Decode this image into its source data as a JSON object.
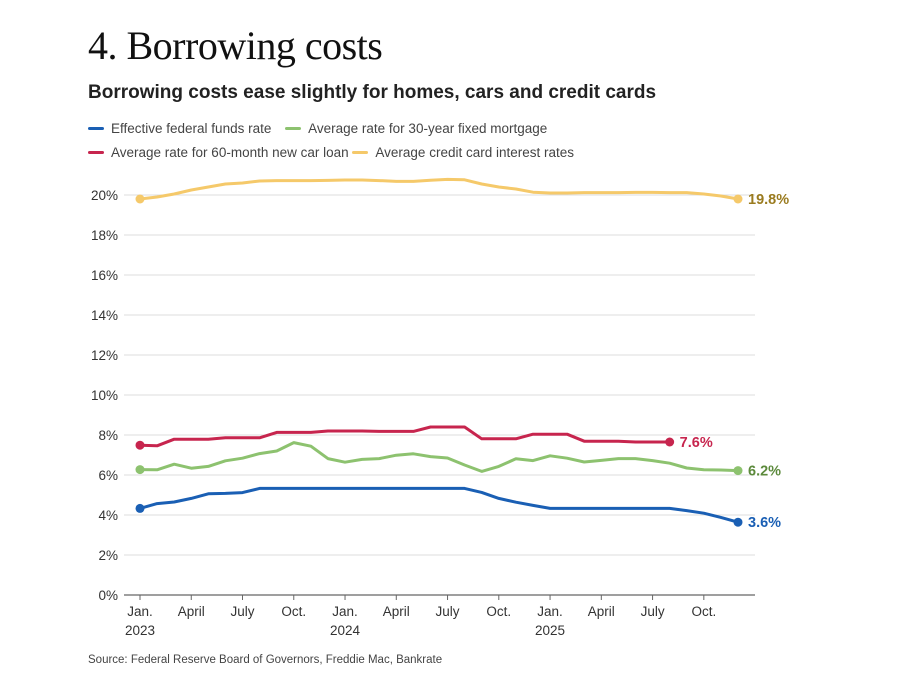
{
  "headline": "4. Borrowing costs",
  "chart_data": {
    "type": "line",
    "title": "Borrowing costs ease slightly for homes, cars and credit cards",
    "xlabel": "",
    "ylabel": "",
    "ylim": [
      0,
      20
    ],
    "y_ticks": [
      "0%",
      "2%",
      "4%",
      "6%",
      "8%",
      "10%",
      "12%",
      "14%",
      "16%",
      "18%",
      "20%"
    ],
    "x_range_months": [
      0,
      35
    ],
    "x_ticks": [
      {
        "month": 0,
        "label": "Jan.",
        "year": "2023"
      },
      {
        "month": 3,
        "label": "April",
        "year": ""
      },
      {
        "month": 6,
        "label": "July",
        "year": ""
      },
      {
        "month": 9,
        "label": "Oct.",
        "year": ""
      },
      {
        "month": 12,
        "label": "Jan.",
        "year": "2024"
      },
      {
        "month": 15,
        "label": "April",
        "year": ""
      },
      {
        "month": 18,
        "label": "July",
        "year": ""
      },
      {
        "month": 21,
        "label": "Oct.",
        "year": ""
      },
      {
        "month": 24,
        "label": "Jan.",
        "year": "2025"
      },
      {
        "month": 27,
        "label": "April",
        "year": ""
      },
      {
        "month": 30,
        "label": "July",
        "year": ""
      },
      {
        "month": 33,
        "label": "Oct.",
        "year": ""
      }
    ],
    "grid": true,
    "legend_position": "top",
    "series": [
      {
        "name": "Effective federal funds rate",
        "color": "#1a5fb4",
        "label_color": "#1a5fb4",
        "end_label": "3.6%",
        "x": [
          0,
          1,
          2,
          3,
          4,
          5,
          6,
          7,
          8,
          9,
          10,
          11,
          12,
          13,
          14,
          15,
          16,
          17,
          18,
          19,
          20,
          21,
          22,
          23,
          24,
          25,
          26,
          27,
          28,
          29,
          30,
          31,
          32,
          33,
          34,
          35
        ],
        "values": [
          4.33,
          4.57,
          4.65,
          4.83,
          5.06,
          5.08,
          5.12,
          5.33,
          5.33,
          5.33,
          5.33,
          5.33,
          5.33,
          5.33,
          5.33,
          5.33,
          5.33,
          5.33,
          5.33,
          5.33,
          5.13,
          4.83,
          4.64,
          4.48,
          4.33,
          4.33,
          4.33,
          4.33,
          4.33,
          4.33,
          4.33,
          4.33,
          4.22,
          4.09,
          3.88,
          3.64
        ]
      },
      {
        "name": "Average rate for 30-year fixed mortgage",
        "color": "#8dc26f",
        "label_color": "#5c8a3c",
        "end_label": "6.2%",
        "x": [
          0,
          1,
          2,
          3,
          4,
          5,
          6,
          7,
          8,
          9,
          10,
          11,
          12,
          13,
          14,
          15,
          16,
          17,
          18,
          19,
          20,
          21,
          22,
          23,
          24,
          25,
          26,
          27,
          28,
          29,
          30,
          31,
          32,
          33,
          34,
          35
        ],
        "values": [
          6.27,
          6.26,
          6.54,
          6.34,
          6.43,
          6.71,
          6.84,
          7.07,
          7.2,
          7.62,
          7.44,
          6.82,
          6.64,
          6.78,
          6.82,
          6.99,
          7.06,
          6.92,
          6.85,
          6.5,
          6.18,
          6.43,
          6.81,
          6.72,
          6.96,
          6.84,
          6.65,
          6.73,
          6.82,
          6.82,
          6.72,
          6.59,
          6.35,
          6.26,
          6.25,
          6.22
        ]
      },
      {
        "name": "Average rate for 60-month new car loan",
        "color": "#c7254e",
        "label_color": "#c7254e",
        "end_label": "7.6%",
        "x": [
          0,
          1,
          2,
          3,
          4,
          5,
          6,
          7,
          8,
          9,
          10,
          11,
          12,
          13,
          14,
          15,
          16,
          17,
          18,
          19,
          20,
          21,
          22,
          23,
          24,
          25,
          26,
          27,
          28,
          29,
          30,
          31
        ],
        "values": [
          7.49,
          7.46,
          7.79,
          7.79,
          7.79,
          7.86,
          7.86,
          7.86,
          8.13,
          8.13,
          8.13,
          8.2,
          8.2,
          8.2,
          8.18,
          8.18,
          8.18,
          8.4,
          8.4,
          8.4,
          7.81,
          7.81,
          7.81,
          8.04,
          8.04,
          8.04,
          7.69,
          7.69,
          7.69,
          7.65,
          7.65,
          7.65
        ]
      },
      {
        "name": "Average credit card interest rates",
        "color": "#f5c96a",
        "label_color": "#9a7b1f",
        "end_label": "19.8%",
        "x": [
          0,
          1,
          2,
          3,
          4,
          5,
          6,
          7,
          8,
          9,
          10,
          11,
          12,
          13,
          14,
          15,
          16,
          17,
          18,
          19,
          20,
          21,
          22,
          23,
          24,
          25,
          26,
          27,
          28,
          29,
          30,
          31,
          32,
          33,
          34,
          35
        ],
        "values": [
          19.8,
          19.9,
          20.05,
          20.25,
          20.4,
          20.55,
          20.6,
          20.7,
          20.72,
          20.72,
          20.72,
          20.73,
          20.75,
          20.75,
          20.72,
          20.68,
          20.68,
          20.74,
          20.78,
          20.76,
          20.55,
          20.4,
          20.3,
          20.14,
          20.1,
          20.1,
          20.12,
          20.12,
          20.12,
          20.13,
          20.13,
          20.12,
          20.12,
          20.05,
          19.95,
          19.8
        ]
      }
    ]
  },
  "source": "Source: Federal Reserve Board of Governors, Freddie Mac, Bankrate"
}
